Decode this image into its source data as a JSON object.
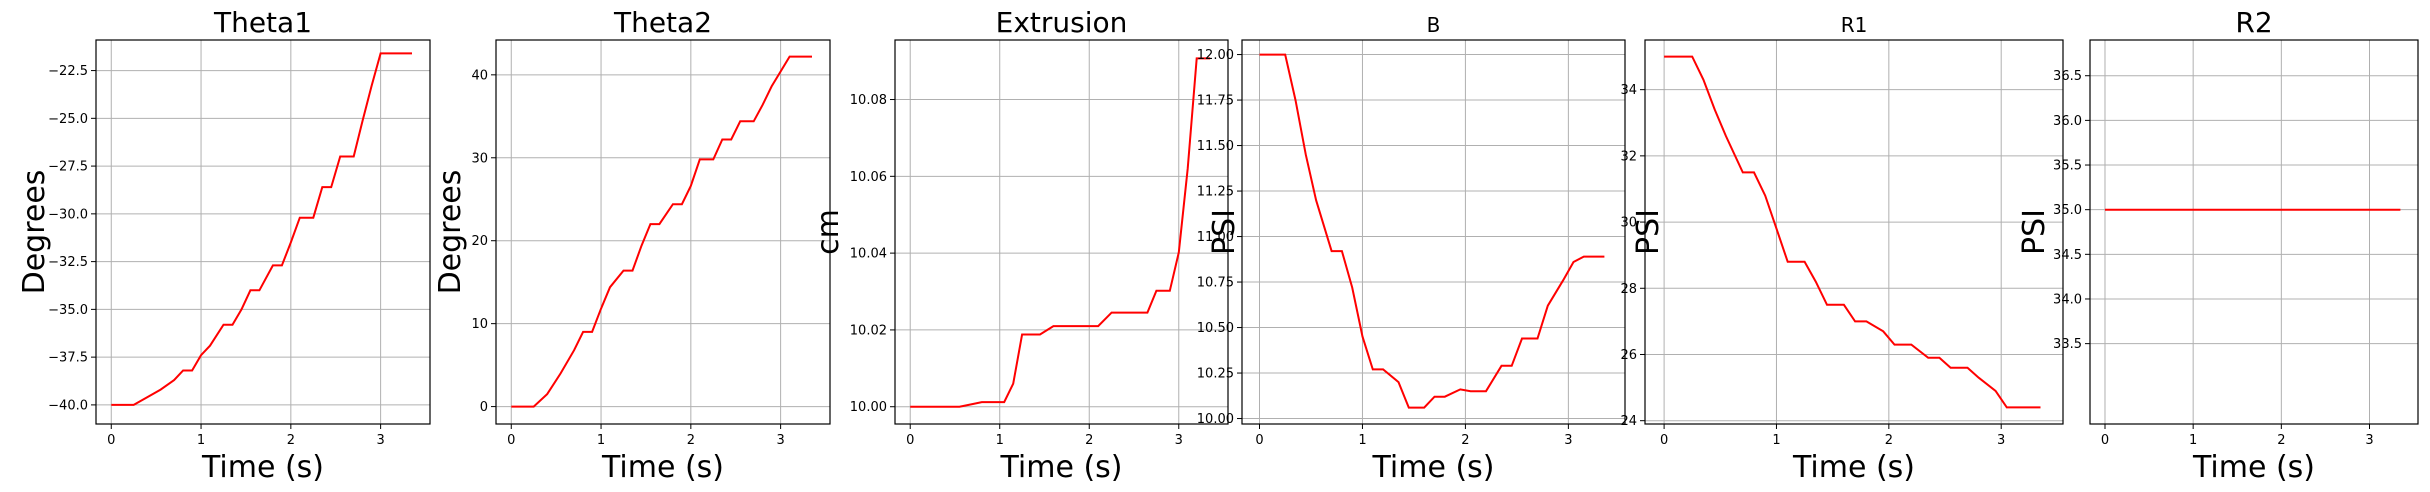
{
  "chart_data": [
    {
      "type": "line",
      "title": "Theta1",
      "xlabel": "Time (s)",
      "ylabel": "Degrees",
      "xlim": [
        -0.17,
        3.55
      ],
      "ylim": [
        -41.0,
        -20.9
      ],
      "xticks": [
        0,
        1,
        2,
        3
      ],
      "yticks": [
        -40.0,
        -37.5,
        -35.0,
        -32.5,
        -30.0,
        -27.5,
        -25.0,
        -22.5
      ],
      "ytick_labels": [
        "−40.0",
        "−37.5",
        "−35.0",
        "−32.5",
        "−30.0",
        "−27.5",
        "−25.0",
        "−22.5"
      ],
      "grid": true,
      "series": [
        {
          "color": "#ff0000",
          "x": [
            0,
            0.25,
            0.4,
            0.55,
            0.7,
            0.8,
            0.9,
            1.0,
            1.1,
            1.25,
            1.35,
            1.45,
            1.55,
            1.65,
            1.8,
            1.9,
            2.0,
            2.1,
            2.25,
            2.35,
            2.45,
            2.55,
            2.7,
            2.8,
            2.9,
            3.0,
            3.1,
            3.25,
            3.35
          ],
          "y": [
            -40.0,
            -40.0,
            -39.6,
            -39.2,
            -38.7,
            -38.2,
            -38.2,
            -37.4,
            -36.9,
            -35.8,
            -35.8,
            -35.0,
            -34.0,
            -34.0,
            -32.7,
            -32.7,
            -31.5,
            -30.2,
            -30.2,
            -28.6,
            -28.6,
            -27.0,
            -27.0,
            -25.1,
            -23.3,
            -21.6,
            -21.6,
            -21.6,
            -21.6
          ]
        }
      ]
    },
    {
      "type": "line",
      "title": "Theta2",
      "xlabel": "Time (s)",
      "ylabel": "Degrees",
      "xlim": [
        -0.17,
        3.55
      ],
      "ylim": [
        -2.1,
        44.2
      ],
      "xticks": [
        0,
        1,
        2,
        3
      ],
      "yticks": [
        0,
        10,
        20,
        30,
        40
      ],
      "ytick_labels": [
        "0",
        "10",
        "20",
        "30",
        "40"
      ],
      "grid": true,
      "series": [
        {
          "color": "#ff0000",
          "x": [
            0,
            0.25,
            0.4,
            0.55,
            0.7,
            0.8,
            0.9,
            1.0,
            1.1,
            1.25,
            1.35,
            1.45,
            1.55,
            1.65,
            1.8,
            1.9,
            2.0,
            2.1,
            2.25,
            2.35,
            2.45,
            2.55,
            2.7,
            2.8,
            2.9,
            3.0,
            3.1,
            3.25,
            3.35
          ],
          "y": [
            0,
            0,
            1.5,
            4.0,
            6.8,
            9.0,
            9.0,
            11.8,
            14.4,
            16.4,
            16.4,
            19.4,
            22.0,
            22.0,
            24.4,
            24.4,
            26.6,
            29.8,
            29.8,
            32.2,
            32.2,
            34.4,
            34.4,
            36.4,
            38.6,
            40.4,
            42.2,
            42.2,
            42.2
          ]
        }
      ]
    },
    {
      "type": "line",
      "title": "Extrusion",
      "xlabel": "Time (s)",
      "ylabel": "cm",
      "xlim": [
        -0.17,
        3.55
      ],
      "ylim": [
        9.9955,
        10.0955
      ],
      "xticks": [
        0,
        1,
        2,
        3
      ],
      "yticks": [
        10.0,
        10.02,
        10.04,
        10.06,
        10.08
      ],
      "ytick_labels": [
        "10.00",
        "10.02",
        "10.04",
        "10.06",
        "10.08"
      ],
      "grid": true,
      "series": [
        {
          "color": "#ff0000",
          "x": [
            0,
            0.55,
            0.7,
            0.8,
            0.95,
            1.05,
            1.15,
            1.25,
            1.45,
            1.6,
            1.7,
            1.8,
            1.9,
            2.0,
            2.1,
            2.25,
            2.35,
            2.45,
            2.65,
            2.75,
            2.9,
            3.0,
            3.1,
            3.2,
            3.25,
            3.35
          ],
          "y": [
            10.0,
            10.0,
            10.0007,
            10.0012,
            10.0012,
            10.0012,
            10.006,
            10.0188,
            10.0188,
            10.021,
            10.021,
            10.021,
            10.021,
            10.021,
            10.021,
            10.0245,
            10.0245,
            10.0245,
            10.0245,
            10.0302,
            10.0302,
            10.0402,
            10.062,
            10.0907,
            10.0907,
            10.0907
          ]
        }
      ]
    },
    {
      "type": "line",
      "title": "B",
      "xlabel": "Time (s)",
      "ylabel": "PSI",
      "xlim": [
        -0.17,
        3.55
      ],
      "ylim": [
        9.97,
        12.08
      ],
      "xticks": [
        0,
        1,
        2,
        3
      ],
      "yticks": [
        10.0,
        10.25,
        10.5,
        10.75,
        11.0,
        11.25,
        11.5,
        11.75,
        12.0
      ],
      "ytick_labels": [
        "10.00",
        "10.25",
        "10.50",
        "10.75",
        "11.00",
        "11.25",
        "11.50",
        "11.75",
        "12.00"
      ],
      "grid": true,
      "series": [
        {
          "color": "#ff0000",
          "x": [
            0,
            0.25,
            0.35,
            0.45,
            0.55,
            0.7,
            0.8,
            0.9,
            1.0,
            1.1,
            1.2,
            1.35,
            1.45,
            1.6,
            1.7,
            1.8,
            1.95,
            2.05,
            2.2,
            2.35,
            2.45,
            2.55,
            2.7,
            2.8,
            2.95,
            3.05,
            3.15,
            3.25,
            3.35
          ],
          "y": [
            12.0,
            12.0,
            11.75,
            11.45,
            11.2,
            10.92,
            10.92,
            10.72,
            10.45,
            10.27,
            10.27,
            10.2,
            10.06,
            10.06,
            10.12,
            10.12,
            10.16,
            10.15,
            10.15,
            10.29,
            10.29,
            10.44,
            10.44,
            10.62,
            10.76,
            10.86,
            10.89,
            10.89,
            10.89
          ]
        }
      ]
    },
    {
      "type": "line",
      "title": "R1",
      "xlabel": "Time (s)",
      "ylabel": "PSI",
      "xlim": [
        -0.17,
        3.55
      ],
      "ylim": [
        23.9,
        35.5
      ],
      "xticks": [
        0,
        1,
        2,
        3
      ],
      "yticks": [
        24,
        26,
        28,
        30,
        32,
        34
      ],
      "ytick_labels": [
        "24",
        "26",
        "28",
        "30",
        "32",
        "34"
      ],
      "grid": true,
      "series": [
        {
          "color": "#ff0000",
          "x": [
            0,
            0.25,
            0.35,
            0.45,
            0.55,
            0.7,
            0.8,
            0.9,
            1.0,
            1.1,
            1.25,
            1.35,
            1.45,
            1.6,
            1.7,
            1.8,
            1.95,
            2.05,
            2.2,
            2.35,
            2.45,
            2.55,
            2.7,
            2.8,
            2.95,
            3.05,
            3.15,
            3.25,
            3.35
          ],
          "y": [
            35.0,
            35.0,
            34.3,
            33.4,
            32.6,
            31.5,
            31.5,
            30.8,
            29.8,
            28.8,
            28.8,
            28.2,
            27.5,
            27.5,
            27.0,
            27.0,
            26.7,
            26.3,
            26.3,
            25.9,
            25.9,
            25.6,
            25.6,
            25.3,
            24.9,
            24.4,
            24.4,
            24.4,
            24.4
          ]
        }
      ]
    },
    {
      "type": "line",
      "title": "R2",
      "xlabel": "Time (s)",
      "ylabel": "PSI",
      "xlim": [
        -0.17,
        3.55
      ],
      "ylim": [
        32.6,
        36.9
      ],
      "xticks": [
        0,
        1,
        2,
        3
      ],
      "yticks": [
        33.5,
        34.0,
        34.5,
        35.0,
        35.5,
        36.0,
        36.5
      ],
      "ytick_labels": [
        "33.5",
        "34.0",
        "34.5",
        "35.0",
        "35.5",
        "36.0",
        "36.5"
      ],
      "grid": true,
      "series": [
        {
          "color": "#ff0000",
          "x": [
            0,
            3.35
          ],
          "y": [
            35.0,
            35.0
          ]
        }
      ]
    }
  ]
}
